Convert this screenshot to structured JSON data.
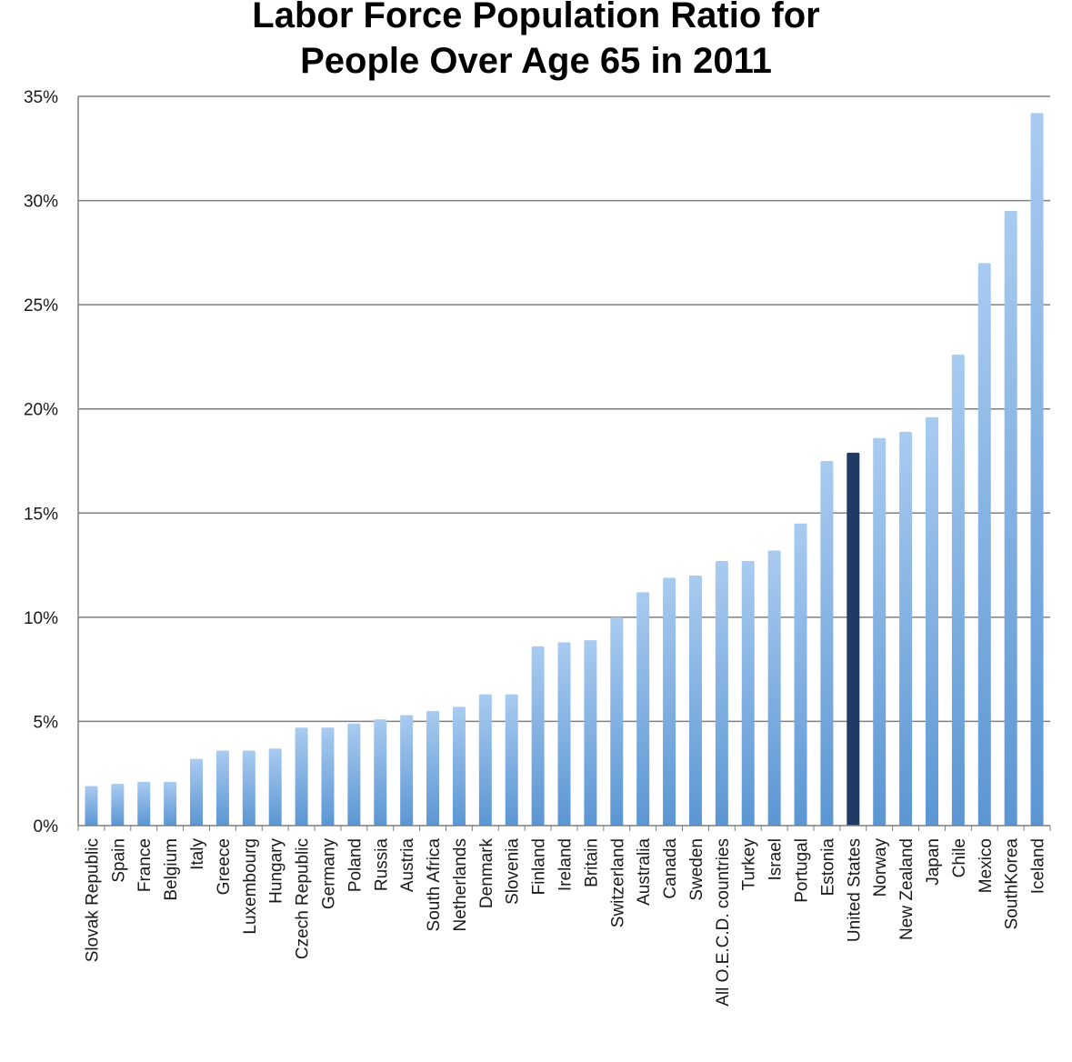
{
  "chart_data": {
    "type": "bar",
    "title_lines": [
      "Labor Force Population Ratio for",
      "People Over Age 65 in 2011"
    ],
    "xlabel": "",
    "ylabel": "",
    "ylim": [
      0,
      35
    ],
    "y_ticks": [
      0,
      5,
      10,
      15,
      20,
      25,
      30,
      35
    ],
    "y_tick_labels": [
      "0%",
      "5%",
      "10%",
      "15%",
      "20%",
      "25%",
      "30%",
      "35%"
    ],
    "grid": true,
    "legend": "none",
    "categories": [
      "Slovak Republic",
      "Spain",
      "France",
      "Belgium",
      "Italy",
      "Greece",
      "Luxembourg",
      "Hungary",
      "Czech Republic",
      "Germany",
      "Poland",
      "Russia",
      "Austria",
      "South Africa",
      "Netherlands",
      "Denmark",
      "Slovenia",
      "Finland",
      "Ireland",
      "Britain",
      "Switzerland",
      "Australia",
      "Canada",
      "Sweden",
      "All O.E.C.D. countries",
      "Turkey",
      "Israel",
      "Portugal",
      "Estonia",
      "United States",
      "Norway",
      "New Zealand",
      "Japan",
      "Chile",
      "Mexico",
      "SouthKorea",
      "Iceland"
    ],
    "values": [
      1.9,
      2.0,
      2.1,
      2.1,
      3.2,
      3.6,
      3.6,
      3.7,
      4.7,
      4.7,
      4.9,
      5.1,
      5.3,
      5.5,
      5.7,
      6.3,
      6.3,
      8.6,
      8.8,
      8.9,
      10.0,
      11.2,
      11.9,
      12.0,
      12.7,
      12.7,
      13.2,
      14.5,
      17.5,
      17.9,
      18.6,
      18.9,
      19.6,
      22.6,
      27.0,
      29.5,
      34.2
    ],
    "highlight_category": "United States",
    "colors": {
      "bar_top": "#a9cbf0",
      "bar_bottom": "#5b96d3",
      "highlight": "#1f3b63",
      "gridline": "#7f7f7f",
      "axis": "#7f7f7f"
    }
  }
}
